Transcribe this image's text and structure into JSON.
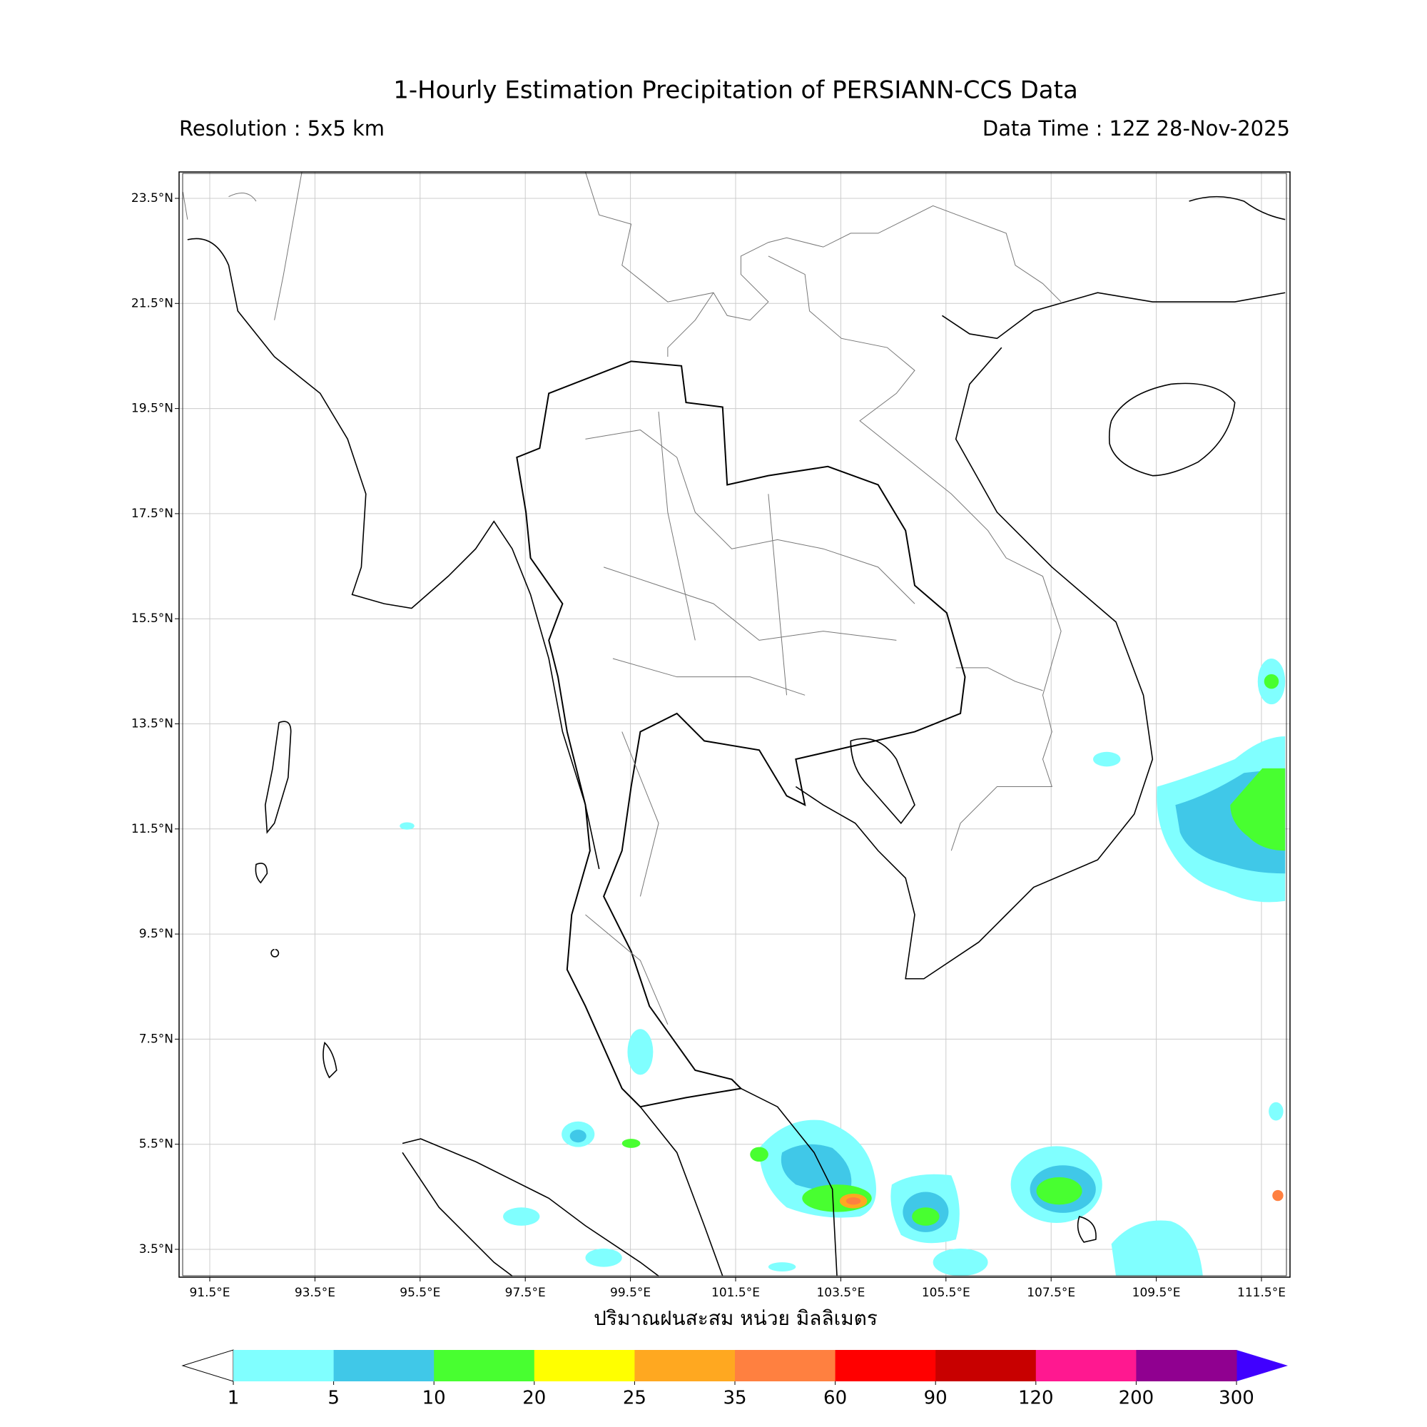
{
  "header": {
    "title": "1-Hourly Estimation Precipitation of PERSIANN-CCS Data",
    "resolution": "Resolution : 5x5 km",
    "data_time": "Data Time : 12Z 28-Nov-2025"
  },
  "map": {
    "lat_ticks": [
      {
        "value": 23.5,
        "label": "23.5°N"
      },
      {
        "value": 21.5,
        "label": "21.5°N"
      },
      {
        "value": 19.5,
        "label": "19.5°N"
      },
      {
        "value": 17.5,
        "label": "17.5°N"
      },
      {
        "value": 15.5,
        "label": "15.5°N"
      },
      {
        "value": 13.5,
        "label": "13.5°N"
      },
      {
        "value": 11.5,
        "label": "11.5°N"
      },
      {
        "value": 9.5,
        "label": "9.5°N"
      },
      {
        "value": 7.5,
        "label": "7.5°N"
      },
      {
        "value": 5.5,
        "label": "5.5°N"
      },
      {
        "value": 3.5,
        "label": "3.5°N"
      }
    ],
    "lon_ticks": [
      {
        "value": 91.5,
        "label": "91.5°E"
      },
      {
        "value": 93.5,
        "label": "93.5°E"
      },
      {
        "value": 95.5,
        "label": "95.5°E"
      },
      {
        "value": 97.5,
        "label": "97.5°E"
      },
      {
        "value": 99.5,
        "label": "99.5°E"
      },
      {
        "value": 101.5,
        "label": "101.5°E"
      },
      {
        "value": 103.5,
        "label": "103.5°E"
      },
      {
        "value": 105.5,
        "label": "105.5°E"
      },
      {
        "value": 107.5,
        "label": "107.5°E"
      },
      {
        "value": 109.5,
        "label": "109.5°E"
      },
      {
        "value": 111.5,
        "label": "111.5°E"
      }
    ]
  },
  "colorbar": {
    "label": "ปริมาณฝนสะสม หน่วย มิลลิเมตร",
    "levels": [
      1,
      5,
      10,
      20,
      25,
      35,
      60,
      90,
      120,
      200,
      300
    ],
    "colors": [
      "#80ffff",
      "#40c8e8",
      "#48ff30",
      "#ffff00",
      "#ffa820",
      "#ff8040",
      "#ff0000",
      "#c80000",
      "#ff1890",
      "#900090"
    ],
    "under_color": "#ffffff",
    "over_color": "#4000ff"
  }
}
